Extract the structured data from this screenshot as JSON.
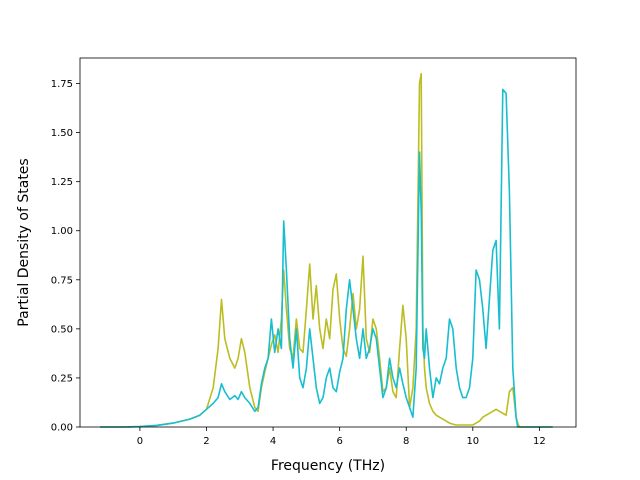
{
  "chart_data": {
    "type": "line",
    "title": "",
    "xlabel": "Frequency (THz)",
    "ylabel": "Partial Density of States",
    "xlim": [
      -1.8,
      13.1
    ],
    "ylim": [
      0,
      1.88
    ],
    "xticks": [
      0,
      2,
      4,
      6,
      8,
      10,
      12
    ],
    "xtick_labels": [
      "0",
      "2",
      "4",
      "6",
      "8",
      "10",
      "12"
    ],
    "yticks": [
      0.0,
      0.25,
      0.5,
      0.75,
      1.0,
      1.25,
      1.5,
      1.75
    ],
    "ytick_labels": [
      "0.00",
      "0.25",
      "0.50",
      "0.75",
      "1.00",
      "1.25",
      "1.50",
      "1.75"
    ],
    "grid": false,
    "legend": "none",
    "series": [
      {
        "color": "#bcbd22",
        "x": [
          -1.2,
          -0.5,
          0,
          0.5,
          1.0,
          1.5,
          1.8,
          2.0,
          2.2,
          2.35,
          2.45,
          2.55,
          2.7,
          2.85,
          2.95,
          3.05,
          3.15,
          3.3,
          3.45,
          3.55,
          3.65,
          3.75,
          3.85,
          3.95,
          4.05,
          4.15,
          4.25,
          4.32,
          4.4,
          4.5,
          4.6,
          4.7,
          4.8,
          4.9,
          5.0,
          5.1,
          5.2,
          5.3,
          5.4,
          5.5,
          5.6,
          5.7,
          5.8,
          5.9,
          6.0,
          6.1,
          6.2,
          6.3,
          6.4,
          6.5,
          6.6,
          6.7,
          6.8,
          6.9,
          7.0,
          7.1,
          7.2,
          7.3,
          7.4,
          7.5,
          7.6,
          7.7,
          7.8,
          7.9,
          8.0,
          8.1,
          8.2,
          8.3,
          8.4,
          8.45,
          8.5,
          8.55,
          8.6,
          8.7,
          8.8,
          8.9,
          9.0,
          9.1,
          9.2,
          9.3,
          9.4,
          9.5,
          9.6,
          9.7,
          9.8,
          9.9,
          10.0,
          10.1,
          10.2,
          10.3,
          10.4,
          10.5,
          10.6,
          10.7,
          10.8,
          10.9,
          11.0,
          11.1,
          11.2,
          11.3,
          11.35,
          11.4,
          11.5,
          12.0,
          12.4
        ],
        "y": [
          0.0,
          0.0,
          0.002,
          0.008,
          0.02,
          0.04,
          0.06,
          0.09,
          0.2,
          0.4,
          0.65,
          0.45,
          0.35,
          0.3,
          0.35,
          0.45,
          0.38,
          0.2,
          0.1,
          0.08,
          0.2,
          0.28,
          0.35,
          0.42,
          0.47,
          0.38,
          0.55,
          0.8,
          0.6,
          0.4,
          0.35,
          0.55,
          0.4,
          0.38,
          0.6,
          0.83,
          0.55,
          0.72,
          0.5,
          0.4,
          0.55,
          0.45,
          0.7,
          0.78,
          0.55,
          0.4,
          0.36,
          0.5,
          0.68,
          0.5,
          0.6,
          0.87,
          0.45,
          0.38,
          0.55,
          0.5,
          0.35,
          0.18,
          0.2,
          0.3,
          0.18,
          0.15,
          0.4,
          0.62,
          0.45,
          0.1,
          0.2,
          0.5,
          1.75,
          1.8,
          0.5,
          0.3,
          0.2,
          0.12,
          0.08,
          0.06,
          0.05,
          0.04,
          0.03,
          0.02,
          0.015,
          0.01,
          0.01,
          0.01,
          0.01,
          0.01,
          0.01,
          0.02,
          0.03,
          0.05,
          0.06,
          0.07,
          0.08,
          0.09,
          0.08,
          0.07,
          0.06,
          0.18,
          0.2,
          0.05,
          0.02,
          0.0,
          0.0,
          0.0,
          0.0
        ]
      },
      {
        "color": "#17becf",
        "x": [
          -1.2,
          -0.5,
          0,
          0.5,
          1.0,
          1.5,
          1.8,
          2.0,
          2.2,
          2.35,
          2.45,
          2.55,
          2.7,
          2.85,
          2.95,
          3.05,
          3.15,
          3.3,
          3.45,
          3.55,
          3.65,
          3.75,
          3.85,
          3.95,
          4.05,
          4.15,
          4.25,
          4.32,
          4.4,
          4.5,
          4.6,
          4.7,
          4.8,
          4.9,
          5.0,
          5.1,
          5.2,
          5.3,
          5.4,
          5.5,
          5.6,
          5.7,
          5.8,
          5.9,
          6.0,
          6.1,
          6.2,
          6.3,
          6.4,
          6.5,
          6.6,
          6.7,
          6.8,
          6.9,
          7.0,
          7.1,
          7.2,
          7.3,
          7.4,
          7.5,
          7.6,
          7.7,
          7.8,
          7.9,
          8.0,
          8.1,
          8.2,
          8.3,
          8.4,
          8.45,
          8.5,
          8.55,
          8.6,
          8.7,
          8.8,
          8.9,
          9.0,
          9.1,
          9.2,
          9.3,
          9.4,
          9.5,
          9.6,
          9.7,
          9.8,
          9.9,
          10.0,
          10.1,
          10.2,
          10.3,
          10.4,
          10.5,
          10.6,
          10.7,
          10.8,
          10.9,
          11.0,
          11.1,
          11.2,
          11.3,
          11.35,
          11.4,
          11.5,
          12.0,
          12.4
        ],
        "y": [
          0.0,
          0.0,
          0.002,
          0.008,
          0.02,
          0.04,
          0.06,
          0.09,
          0.12,
          0.15,
          0.22,
          0.18,
          0.14,
          0.16,
          0.14,
          0.18,
          0.15,
          0.12,
          0.08,
          0.1,
          0.22,
          0.3,
          0.35,
          0.55,
          0.38,
          0.5,
          0.4,
          1.05,
          0.8,
          0.45,
          0.3,
          0.5,
          0.25,
          0.2,
          0.3,
          0.5,
          0.35,
          0.2,
          0.12,
          0.15,
          0.25,
          0.3,
          0.2,
          0.18,
          0.28,
          0.35,
          0.6,
          0.75,
          0.6,
          0.45,
          0.35,
          0.5,
          0.35,
          0.4,
          0.5,
          0.45,
          0.3,
          0.15,
          0.2,
          0.35,
          0.25,
          0.2,
          0.3,
          0.22,
          0.15,
          0.1,
          0.05,
          0.3,
          1.4,
          1.1,
          0.4,
          0.35,
          0.5,
          0.3,
          0.15,
          0.25,
          0.22,
          0.3,
          0.35,
          0.55,
          0.5,
          0.3,
          0.2,
          0.15,
          0.15,
          0.2,
          0.35,
          0.8,
          0.75,
          0.6,
          0.4,
          0.65,
          0.9,
          0.95,
          0.5,
          1.72,
          1.7,
          1.2,
          0.3,
          0.05,
          0.0,
          0.0,
          0.0,
          0.0,
          0.0
        ]
      }
    ]
  }
}
